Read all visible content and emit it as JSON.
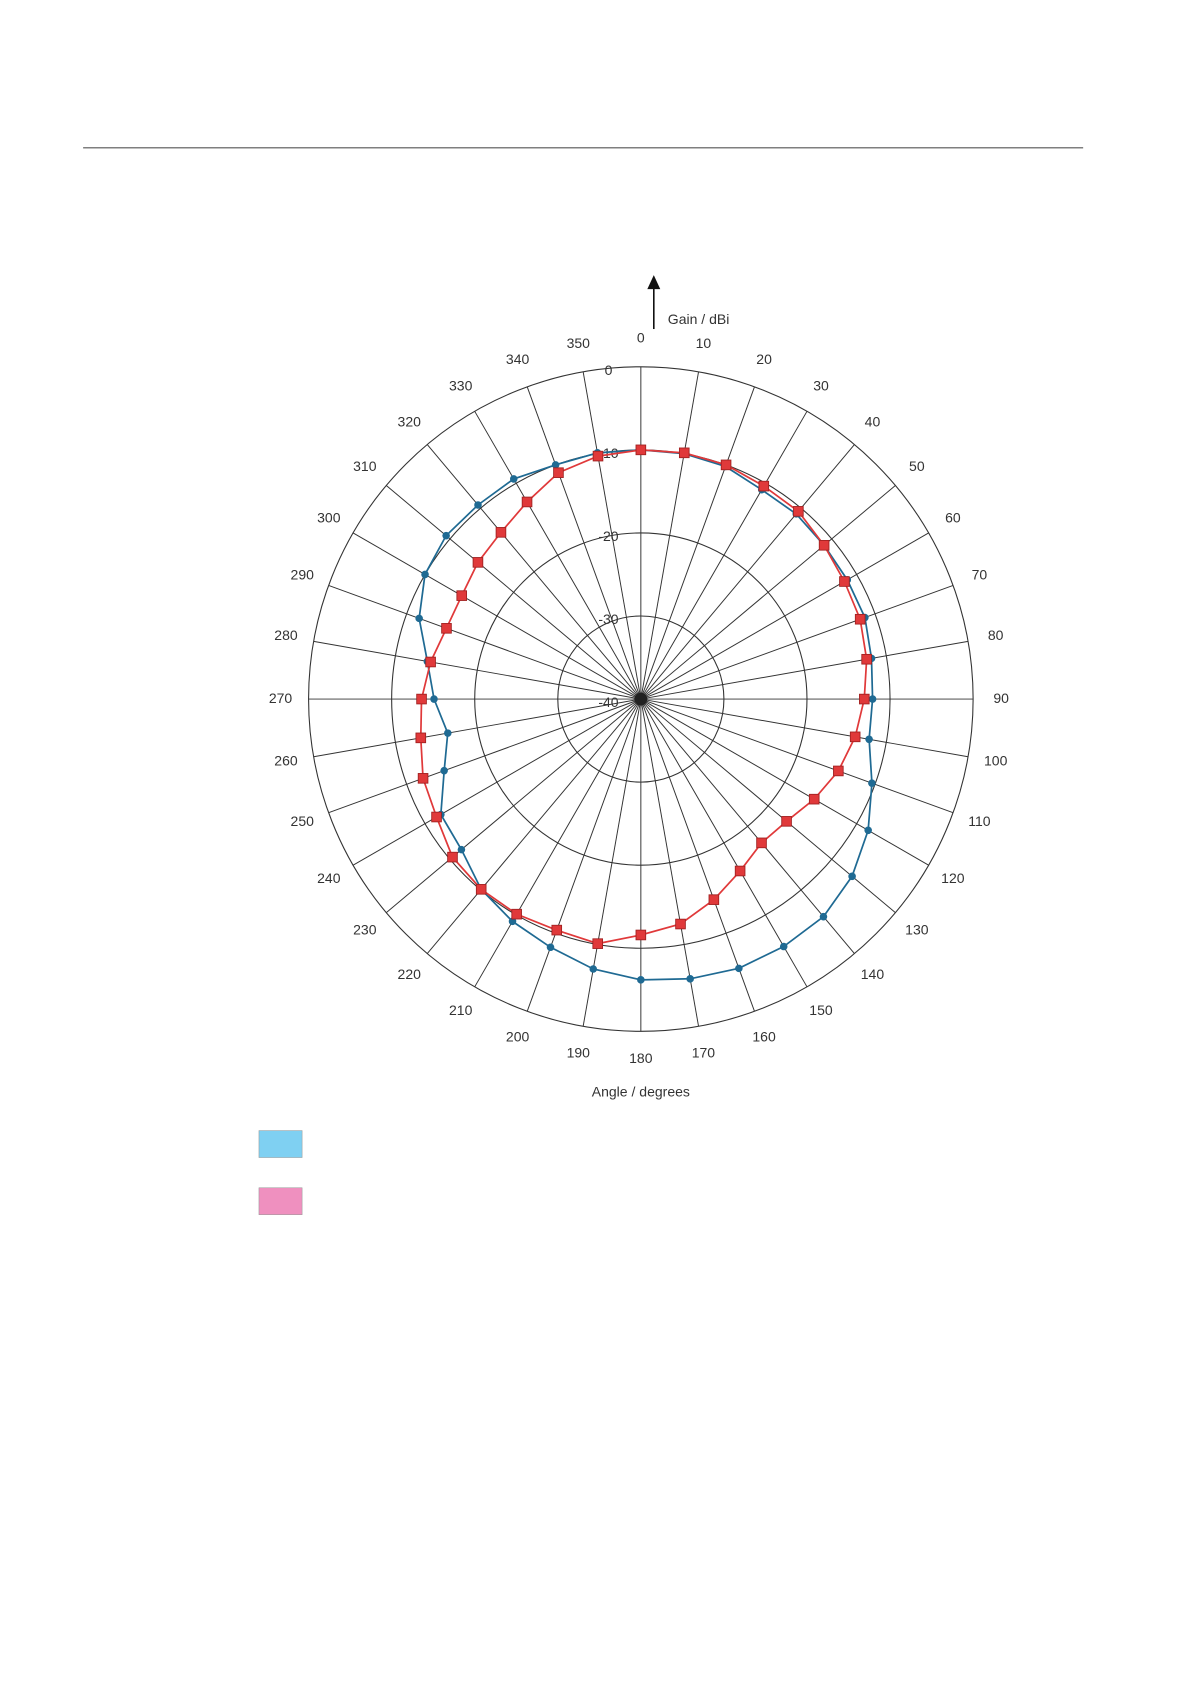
{
  "chart_data": {
    "type": "polar",
    "radial_axis_label": "Gain / dBi",
    "angle_axis_label": "Angle / degrees",
    "rlim": [
      -40,
      0
    ],
    "rticks": [
      -40,
      -30,
      -20,
      -10,
      0
    ],
    "thetaticks": [
      0,
      10,
      20,
      30,
      40,
      50,
      60,
      70,
      80,
      90,
      100,
      110,
      120,
      130,
      140,
      150,
      160,
      170,
      180,
      190,
      200,
      210,
      220,
      230,
      240,
      250,
      260,
      270,
      280,
      290,
      300,
      310,
      320,
      330,
      340,
      350
    ],
    "series": [
      {
        "color": "#1f6a93",
        "swatch_color": "#7fd0f2",
        "marker": "circle",
        "values": [
          -10.0,
          -10.0,
          -10.2,
          -10.9,
          -10.9,
          -11.2,
          -11.3,
          -11.3,
          -11.8,
          -12.1,
          -12.1,
          -10.4,
          -8.4,
          -6.8,
          -5.8,
          -5.6,
          -5.5,
          -5.8,
          -6.2,
          -7.0,
          -8.2,
          -9.1,
          -10.1,
          -11.8,
          -12.2,
          -14.8,
          -16.4,
          -15.1,
          -13.9,
          -11.6,
          -10.0,
          -9.4,
          -9.5,
          -9.4,
          -10.0,
          -9.9
        ]
      },
      {
        "color": "#e0393a",
        "swatch_color": "#ef90bf",
        "marker": "square",
        "values": [
          -10.0,
          -9.9,
          -10.0,
          -10.4,
          -10.5,
          -11.2,
          -11.7,
          -11.9,
          -12.4,
          -13.1,
          -13.8,
          -14.7,
          -15.9,
          -17.1,
          -17.4,
          -16.1,
          -14.3,
          -12.5,
          -11.6,
          -10.1,
          -10.4,
          -10.1,
          -10.1,
          -10.4,
          -11.6,
          -12.1,
          -13.1,
          -13.6,
          -14.3,
          -15.1,
          -15.1,
          -14.4,
          -13.8,
          -12.6,
          -11.0,
          -10.3
        ]
      }
    ]
  }
}
